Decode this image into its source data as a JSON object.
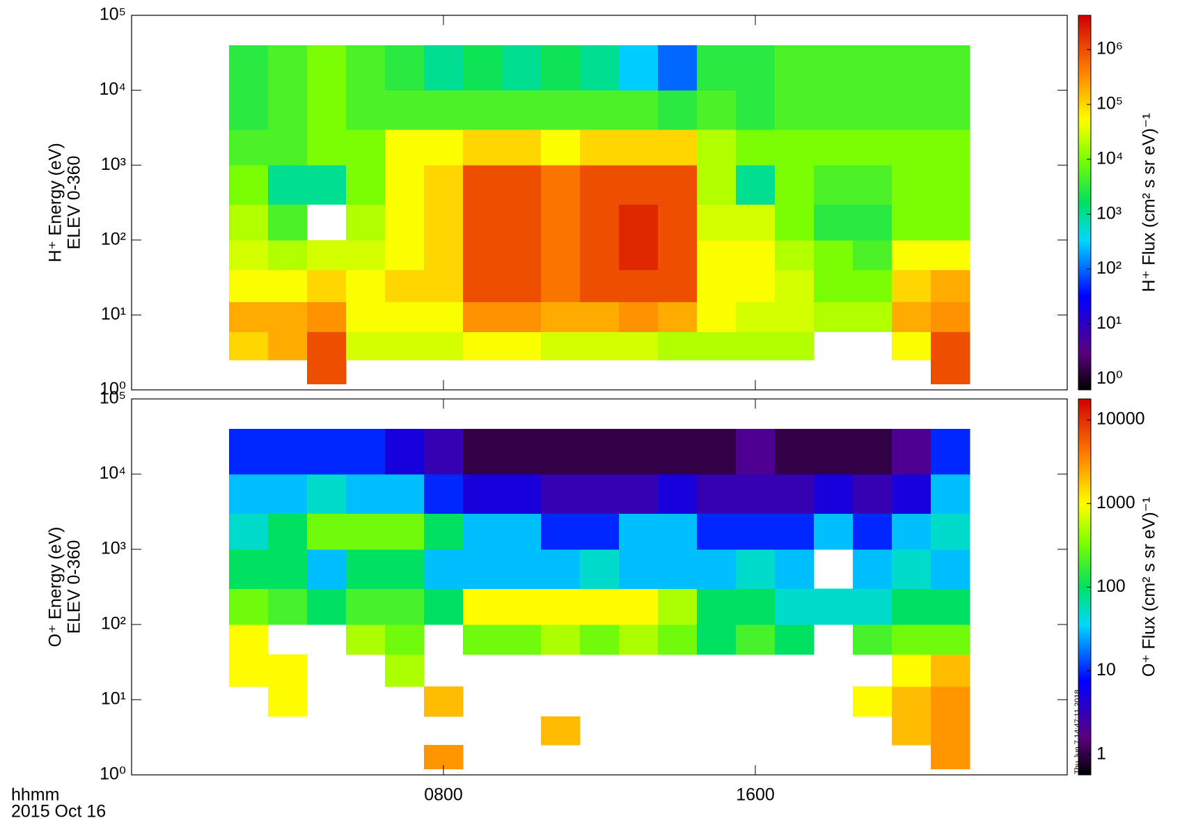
{
  "chart_data": [
    {
      "type": "spectrogram",
      "y_label": "H⁺ Energy (eV)",
      "y_label2": "ELEV 0-360",
      "colorbar_label": "H⁺ Flux (cm² s sr eV)⁻¹",
      "log_y": true,
      "ylim": [
        1,
        100000
      ],
      "yticks": [
        {
          "value": 1,
          "label": "10⁰"
        },
        {
          "value": 10,
          "label": "10¹"
        },
        {
          "value": 100,
          "label": "10²"
        },
        {
          "value": 1000,
          "label": "10³"
        },
        {
          "value": 10000,
          "label": "10⁴"
        },
        {
          "value": 100000,
          "label": "10⁵"
        }
      ],
      "colormap": "rainbow",
      "log_c": true,
      "clim": [
        0.63,
        4200000
      ],
      "cticks": [
        {
          "value": 1,
          "label": "10⁰"
        },
        {
          "value": 10,
          "label": "10¹"
        },
        {
          "value": 100,
          "label": "10²"
        },
        {
          "value": 1000,
          "label": "10³"
        },
        {
          "value": 10000,
          "label": "10⁴"
        },
        {
          "value": 100000,
          "label": "10⁵"
        },
        {
          "value": 1000000,
          "label": "10⁶"
        }
      ],
      "x_edges": [
        2.5,
        3.5,
        4.5,
        5.5,
        6.5,
        7.5,
        8.5,
        9.5,
        10.5,
        11.5,
        12.5,
        13.5,
        14.5,
        15.5,
        16.5,
        17.5,
        18.5,
        19.5,
        20.5,
        21.5
      ],
      "y_edges": [
        1.2,
        2.5,
        6,
        15,
        40,
        100,
        300,
        1000,
        3000,
        10000,
        40000
      ],
      "values": [
        [
          null,
          100000.0,
          200000.0,
          50000.0,
          30000.0,
          20000.0,
          10000.0,
          5000.0,
          3000.0,
          3000.0
        ],
        [
          null,
          200000.0,
          200000.0,
          50000.0,
          20000.0,
          5000.0,
          1000.0,
          5000.0,
          5000.0,
          5000.0
        ],
        [
          1000000.0,
          1000000.0,
          300000.0,
          100000.0,
          30000.0,
          null,
          1000.0,
          10000.0,
          10000.0,
          10000.0
        ],
        [
          null,
          30000.0,
          50000.0,
          50000.0,
          30000.0,
          20000.0,
          10000.0,
          10000.0,
          5000.0,
          5000.0
        ],
        [
          null,
          30000.0,
          50000.0,
          100000.0,
          50000.0,
          50000.0,
          50000.0,
          50000.0,
          5000.0,
          3000.0
        ],
        [
          null,
          30000.0,
          50000.0,
          100000.0,
          100000.0,
          100000.0,
          100000.0,
          50000.0,
          5000.0,
          1000.0
        ],
        [
          null,
          50000.0,
          300000.0,
          1000000.0,
          1000000.0,
          1000000.0,
          1000000.0,
          100000.0,
          5000.0,
          2000.0
        ],
        [
          null,
          50000.0,
          300000.0,
          1000000.0,
          1000000.0,
          1000000.0,
          1000000.0,
          100000.0,
          5000.0,
          1000.0
        ],
        [
          null,
          30000.0,
          200000.0,
          500000.0,
          500000.0,
          500000.0,
          500000.0,
          50000.0,
          5000.0,
          2000.0
        ],
        [
          null,
          30000.0,
          200000.0,
          1000000.0,
          1000000.0,
          1000000.0,
          1000000.0,
          100000.0,
          5000.0,
          1000.0
        ],
        [
          null,
          30000.0,
          300000.0,
          1000000.0,
          2000000.0,
          2000000.0,
          1000000.0,
          100000.0,
          5000.0,
          300
        ],
        [
          null,
          20000.0,
          200000.0,
          1000000.0,
          1000000.0,
          1000000.0,
          1000000.0,
          100000.0,
          3000.0,
          100
        ],
        [
          null,
          20000.0,
          50000.0,
          50000.0,
          50000.0,
          30000.0,
          20000.0,
          20000.0,
          5000.0,
          3000.0
        ],
        [
          null,
          20000.0,
          30000.0,
          50000.0,
          50000.0,
          30000.0,
          1000.0,
          10000.0,
          3000.0,
          3000.0
        ],
        [
          null,
          20000.0,
          30000.0,
          30000.0,
          20000.0,
          10000.0,
          10000.0,
          10000.0,
          5000.0,
          5000.0
        ],
        [
          null,
          null,
          20000.0,
          10000.0,
          10000.0,
          3000.0,
          5000.0,
          10000.0,
          5000.0,
          5000.0
        ],
        [
          null,
          null,
          20000.0,
          10000.0,
          5000.0,
          3000.0,
          5000.0,
          10000.0,
          5000.0,
          5000.0
        ],
        [
          null,
          50000.0,
          200000.0,
          100000.0,
          50000.0,
          10000.0,
          10000.0,
          10000.0,
          5000.0,
          5000.0
        ],
        [
          1000000.0,
          1000000.0,
          300000.0,
          200000.0,
          50000.0,
          10000.0,
          10000.0,
          10000.0,
          5000.0,
          5000.0
        ]
      ]
    },
    {
      "type": "spectrogram",
      "y_label": "O⁺ Energy (eV)",
      "y_label2": "ELEV 0-360",
      "colorbar_label": "O⁺ Flux (cm² s sr eV)⁻¹",
      "log_y": true,
      "ylim": [
        1,
        100000
      ],
      "yticks": [
        {
          "value": 1,
          "label": "10⁰"
        },
        {
          "value": 10,
          "label": "10¹"
        },
        {
          "value": 100,
          "label": "10²"
        },
        {
          "value": 1000,
          "label": "10³"
        },
        {
          "value": 10000,
          "label": "10⁴"
        },
        {
          "value": 100000,
          "label": "10⁵"
        }
      ],
      "colormap": "rainbow",
      "log_c": true,
      "clim": [
        0.57,
        17800
      ],
      "cticks": [
        1,
        10,
        100,
        1000,
        10000
      ],
      "x_edges": [
        2.5,
        3.5,
        4.5,
        5.5,
        6.5,
        7.5,
        8.5,
        9.5,
        10.5,
        11.5,
        12.5,
        13.5,
        14.5,
        15.5,
        16.5,
        17.5,
        18.5,
        19.5,
        20.5,
        21.5
      ],
      "y_edges": [
        1.2,
        2.5,
        6,
        15,
        40,
        100,
        300,
        1000,
        3000,
        10000,
        40000
      ],
      "values": [
        [
          null,
          null,
          null,
          1000.0,
          1000.0,
          300,
          100,
          50,
          30,
          10
        ],
        [
          null,
          null,
          1000.0,
          1000.0,
          null,
          200,
          100,
          100,
          30,
          10
        ],
        [
          null,
          null,
          null,
          null,
          null,
          100,
          30,
          300,
          50,
          10
        ],
        [
          null,
          null,
          null,
          null,
          500,
          200,
          100,
          300,
          30,
          10
        ],
        [
          null,
          null,
          null,
          500,
          300,
          200,
          100,
          300,
          30,
          5
        ],
        [
          3000.0,
          null,
          2000.0,
          null,
          null,
          100,
          30,
          100,
          10,
          3
        ],
        [
          null,
          null,
          null,
          null,
          300,
          1000.0,
          30,
          30,
          5,
          1
        ],
        [
          null,
          null,
          null,
          null,
          300,
          1000.0,
          30,
          30,
          5,
          1
        ],
        [
          null,
          2000.0,
          null,
          null,
          500,
          1000.0,
          30,
          10,
          3,
          1
        ],
        [
          null,
          null,
          null,
          null,
          300,
          1000.0,
          50,
          10,
          3,
          1
        ],
        [
          null,
          null,
          null,
          null,
          500,
          1000.0,
          30,
          30,
          3,
          1
        ],
        [
          null,
          null,
          null,
          null,
          300,
          500,
          30,
          30,
          5,
          1
        ],
        [
          null,
          null,
          null,
          null,
          100,
          100,
          30,
          10,
          3,
          1
        ],
        [
          null,
          null,
          null,
          null,
          200,
          100,
          50,
          10,
          3,
          2
        ],
        [
          null,
          null,
          null,
          null,
          100,
          50,
          30,
          10,
          3,
          1
        ],
        [
          null,
          null,
          null,
          null,
          null,
          50,
          null,
          30,
          5,
          1
        ],
        [
          null,
          null,
          1000.0,
          null,
          200,
          50,
          30,
          10,
          3,
          1
        ],
        [
          null,
          2000.0,
          2000.0,
          1000.0,
          300,
          100,
          50,
          30,
          5,
          2
        ],
        [
          3000.0,
          3000.0,
          3000.0,
          2000.0,
          300,
          100,
          30,
          50,
          30,
          10
        ]
      ]
    }
  ],
  "time_axis": {
    "label": "hhmm",
    "date": "2015 Oct 16",
    "xlim": [
      0,
      24
    ],
    "xticks": [
      {
        "value": 8,
        "label": "0800"
      },
      {
        "value": 16,
        "label": "1600"
      }
    ]
  },
  "timestamp": "Thu Jun  7 14:47:11 2018"
}
